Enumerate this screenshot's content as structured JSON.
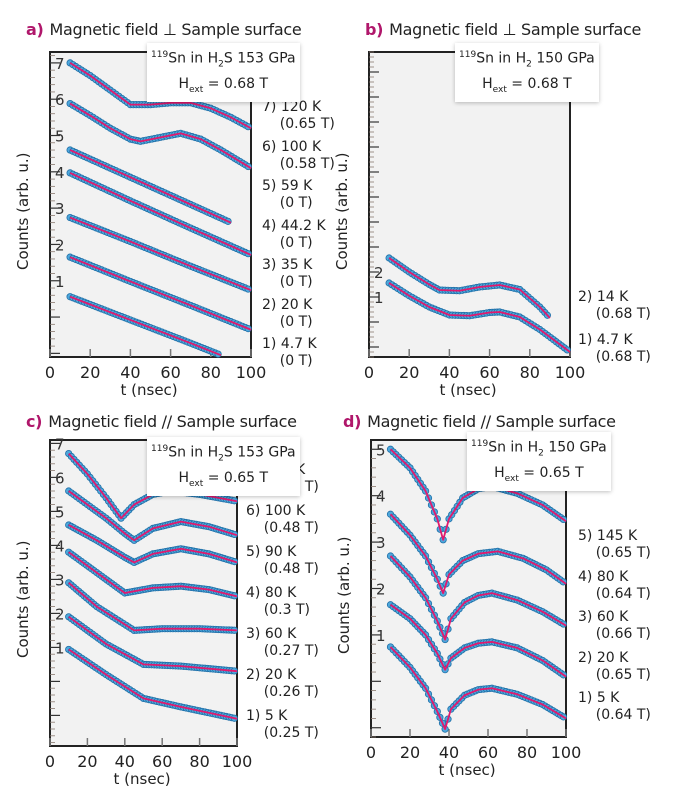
{
  "colors": {
    "marker": "#4ea8dc",
    "marker_edge": "#1f6fa8",
    "fit": "#e2196d",
    "panel_bg": "#f2f2f2",
    "letter": "#b0176b"
  },
  "chart_data": [
    {
      "panel": "a",
      "title": "Magnetic field ⊥ Sample surface",
      "type": "scatter+line",
      "box": {
        "sup": "119",
        "pre": "Sn in H",
        "sub": "2",
        "post": "S  153 GPa",
        "field": "H",
        "field_sub": "ext",
        "field_value": " = 0.68 T"
      },
      "xlabel": "t (nsec)",
      "ylabel": "Counts (arb. u.)",
      "xlim": [
        0,
        100
      ],
      "xticks": [
        0,
        20,
        40,
        60,
        80,
        100
      ],
      "ylim": [
        -1.1,
        7.3
      ],
      "yticks": [
        1,
        2,
        3,
        4,
        5,
        6,
        7
      ],
      "series": [
        {
          "label": "7) 120 K\n    (0.65 T)",
          "t": [
            10,
            20,
            30,
            40,
            50,
            60,
            70,
            80,
            90,
            100
          ],
          "y": [
            7.0,
            6.65,
            6.25,
            5.85,
            5.85,
            5.9,
            5.9,
            5.75,
            5.5,
            5.2
          ]
        },
        {
          "label": "6) 100 K\n    (0.58 T)",
          "t": [
            10,
            20,
            30,
            40,
            45,
            55,
            65,
            75,
            85,
            100
          ],
          "y": [
            5.88,
            5.55,
            5.2,
            4.9,
            4.84,
            4.95,
            5.06,
            4.9,
            4.6,
            4.1
          ]
        },
        {
          "label": "5) 59 K\n    (0 T)",
          "t": [
            10,
            30,
            50,
            70,
            90
          ],
          "y": [
            4.6,
            4.1,
            3.6,
            3.1,
            2.6
          ]
        },
        {
          "label": "4) 44.2 K\n    (0 T)",
          "t": [
            10,
            40,
            70,
            100
          ],
          "y": [
            3.97,
            3.2,
            2.45,
            1.71
          ]
        },
        {
          "label": "3) 35 K\n    (0 T)",
          "t": [
            10,
            40,
            70,
            100
          ],
          "y": [
            2.74,
            2.08,
            1.4,
            0.74
          ]
        },
        {
          "label": "2) 20 K\n    (0 T)",
          "t": [
            10,
            40,
            70,
            100
          ],
          "y": [
            1.65,
            0.98,
            0.32,
            -0.35
          ]
        },
        {
          "label": "1) 4.7 K\n    (0 T)",
          "t": [
            10,
            40,
            70,
            85
          ],
          "y": [
            0.56,
            -0.08,
            -0.72,
            -1.05
          ]
        }
      ]
    },
    {
      "panel": "b",
      "title": "Magnetic field ⊥ Sample surface",
      "type": "scatter+line",
      "box": {
        "sup": "119",
        "pre": "Sn in H",
        "sub": "2",
        "post": "  150 GPa",
        "field": "H",
        "field_sub": "ext",
        "field_value": " = 0.68 T"
      },
      "xlabel": "t (nsec)",
      "ylabel": "Counts (arb. u.)",
      "xlim": [
        0,
        100
      ],
      "xticks": [
        0,
        20,
        40,
        60,
        80,
        100
      ],
      "ylim": [
        -1.4,
        10.8
      ],
      "yticks": [
        1,
        2
      ],
      "series": [
        {
          "label": "2) 14 K\n    (0.68 T)",
          "t": [
            10,
            20,
            30,
            35,
            45,
            55,
            65,
            75,
            85,
            90
          ],
          "y": [
            2.56,
            2.0,
            1.5,
            1.28,
            1.25,
            1.4,
            1.48,
            1.3,
            0.6,
            0.16
          ]
        },
        {
          "label": "1) 4.7 K\n    (0.68 T)",
          "t": [
            10,
            20,
            30,
            40,
            50,
            60,
            65,
            75,
            85,
            100
          ],
          "y": [
            1.56,
            1.05,
            0.6,
            0.28,
            0.25,
            0.38,
            0.4,
            0.2,
            -0.3,
            -1.2
          ]
        }
      ]
    },
    {
      "panel": "c",
      "title": "Magnetic field // Sample surface",
      "type": "scatter+line",
      "box": {
        "sup": "119",
        "pre": "Sn in H",
        "sub": "2",
        "post": "S  153 GPa",
        "field": "H",
        "field_sub": "ext",
        "field_value": " = 0.65 T"
      },
      "xlabel": "t (nsec)",
      "ylabel": "Counts (arb. u.)",
      "xlim": [
        0,
        100
      ],
      "xticks": [
        0,
        20,
        40,
        60,
        80,
        100
      ],
      "ylim": [
        -1.9,
        7.1
      ],
      "yticks": [
        1,
        2,
        3,
        4,
        5,
        6,
        7
      ],
      "series": [
        {
          "label": "7) 145 K\n    (0.62 T)",
          "t": [
            10,
            20,
            30,
            38,
            45,
            55,
            65,
            80,
            100
          ],
          "y": [
            6.7,
            6.1,
            5.4,
            4.8,
            5.2,
            5.5,
            5.6,
            5.5,
            5.3
          ]
        },
        {
          "label": "6) 100 K\n    (0.48 T)",
          "t": [
            10,
            20,
            30,
            40,
            45,
            55,
            70,
            85,
            100
          ],
          "y": [
            5.6,
            5.2,
            4.8,
            4.35,
            4.15,
            4.5,
            4.7,
            4.55,
            4.3
          ]
        },
        {
          "label": "5) 90 K\n    (0.48 T)",
          "t": [
            10,
            25,
            40,
            45,
            55,
            70,
            85,
            100
          ],
          "y": [
            4.6,
            4.15,
            3.65,
            3.5,
            3.75,
            3.9,
            3.75,
            3.5
          ]
        },
        {
          "label": "4) 80 K\n    (0.3 T)",
          "t": [
            10,
            25,
            40,
            55,
            70,
            85,
            100
          ],
          "y": [
            3.8,
            3.2,
            2.6,
            2.75,
            2.8,
            2.7,
            2.5
          ]
        },
        {
          "label": "3) 60 K\n    (0.27 T)",
          "t": [
            10,
            25,
            45,
            60,
            80,
            100
          ],
          "y": [
            2.9,
            2.2,
            1.5,
            1.55,
            1.55,
            1.5
          ]
        },
        {
          "label": "2) 20 K\n    (0.26 T)",
          "t": [
            10,
            30,
            50,
            70,
            100
          ],
          "y": [
            1.9,
            1.1,
            0.5,
            0.45,
            0.3
          ]
        },
        {
          "label": "1) 5 K\n    (0.25 T)",
          "t": [
            10,
            30,
            50,
            70,
            100
          ],
          "y": [
            0.94,
            0.2,
            -0.5,
            -0.75,
            -1.1
          ]
        }
      ]
    },
    {
      "panel": "d",
      "title": "Magnetic field // Sample surface",
      "type": "scatter+line",
      "box": {
        "sup": "119",
        "pre": "Sn in H",
        "sub": "2",
        "post": "  150 GPa",
        "field": "H",
        "field_sub": "ext",
        "field_value": " = 0.65 T"
      },
      "xlabel": "t (nsec)",
      "ylabel": "Counts (arb. u.)",
      "xlim": [
        0,
        100
      ],
      "xticks": [
        0,
        20,
        40,
        60,
        80,
        100
      ],
      "ylim": [
        -1.2,
        5.2
      ],
      "yticks": [
        1,
        2,
        3,
        4,
        5
      ],
      "series": [
        {
          "label": "5) 145 K\n    (0.65 T)",
          "t": [
            10,
            20,
            28,
            34,
            37,
            40,
            47,
            55,
            62,
            75,
            88,
            100
          ],
          "y": [
            5.0,
            4.6,
            4.1,
            3.5,
            3.05,
            3.5,
            3.95,
            4.15,
            4.2,
            4.05,
            3.8,
            3.45
          ]
        },
        {
          "label": "4) 80 K\n    (0.64 T)",
          "t": [
            10,
            20,
            28,
            34,
            37,
            40,
            47,
            55,
            65,
            78,
            90,
            100
          ],
          "y": [
            3.6,
            3.15,
            2.7,
            2.2,
            1.9,
            2.3,
            2.6,
            2.75,
            2.8,
            2.65,
            2.4,
            2.1
          ]
        },
        {
          "label": "3) 60 K\n    (0.66 T)",
          "t": [
            10,
            20,
            28,
            34,
            38,
            41,
            48,
            55,
            62,
            75,
            88,
            100
          ],
          "y": [
            2.7,
            2.25,
            1.8,
            1.3,
            0.9,
            1.35,
            1.7,
            1.85,
            1.9,
            1.75,
            1.5,
            1.2
          ]
        },
        {
          "label": "2) 20 K\n    (0.65 T)",
          "t": [
            10,
            20,
            28,
            34,
            38,
            41,
            48,
            55,
            62,
            75,
            88,
            100
          ],
          "y": [
            1.65,
            1.35,
            1.0,
            0.6,
            0.25,
            0.5,
            0.72,
            0.82,
            0.85,
            0.72,
            0.45,
            0.1
          ]
        },
        {
          "label": "1) 5 K\n    (0.64 T)",
          "t": [
            10,
            20,
            28,
            34,
            38,
            41,
            48,
            55,
            62,
            75,
            88,
            100
          ],
          "y": [
            0.74,
            0.3,
            -0.15,
            -0.65,
            -1.03,
            -0.6,
            -0.3,
            -0.18,
            -0.15,
            -0.28,
            -0.5,
            -0.8
          ]
        }
      ]
    }
  ]
}
